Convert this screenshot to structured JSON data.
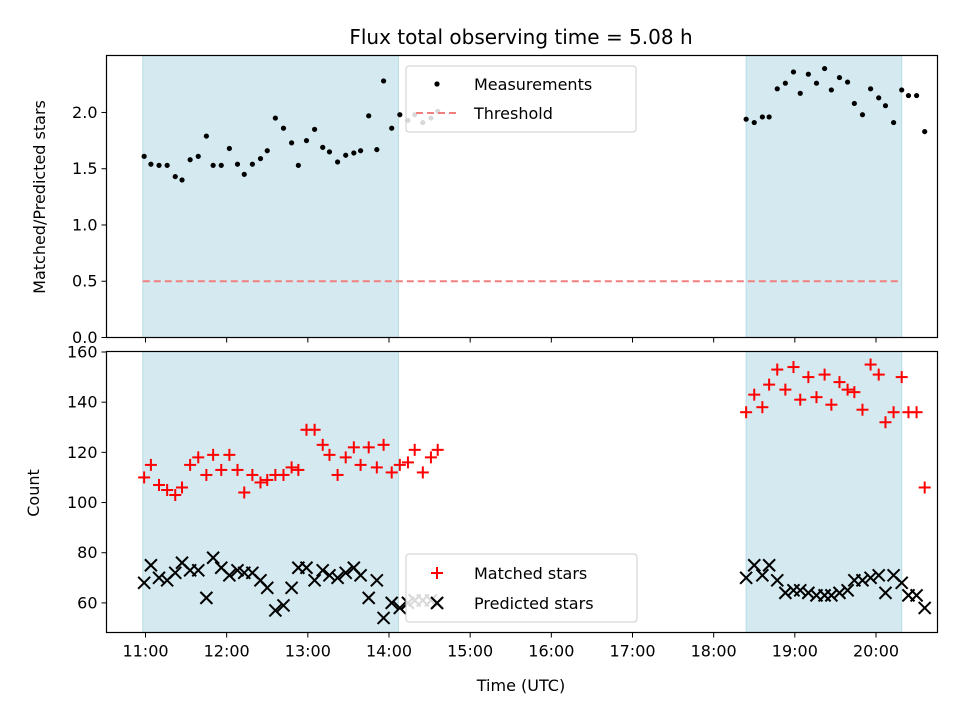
{
  "chart_data": [
    {
      "type": "scatter",
      "title": "Flux total observing time = 5.08 h",
      "ylabel": "Matched/Predicted stars",
      "xlabel": "",
      "ylim": [
        0,
        2.5
      ],
      "yticks": [
        "0.0",
        "0.5",
        "1.0",
        "1.5",
        "2.0"
      ],
      "xlim": [
        "10:32",
        "20:45"
      ],
      "shaded_intervals": [
        [
          "10:58",
          "14:07"
        ],
        [
          "18:24",
          "20:19"
        ]
      ],
      "threshold": 0.5,
      "legend_position": "top-center",
      "series": [
        {
          "name": "Measurements",
          "color": "#000000",
          "marker": "dot",
          "points": [
            [
              "10:59",
              1.61
            ],
            [
              "11:04",
              1.54
            ],
            [
              "11:10",
              1.53
            ],
            [
              "11:16",
              1.53
            ],
            [
              "11:22",
              1.43
            ],
            [
              "11:27",
              1.4
            ],
            [
              "11:33",
              1.58
            ],
            [
              "11:39",
              1.61
            ],
            [
              "11:45",
              1.79
            ],
            [
              "11:50",
              1.53
            ],
            [
              "11:56",
              1.53
            ],
            [
              "12:02",
              1.68
            ],
            [
              "12:08",
              1.54
            ],
            [
              "12:13",
              1.45
            ],
            [
              "12:19",
              1.54
            ],
            [
              "12:25",
              1.59
            ],
            [
              "12:30",
              1.66
            ],
            [
              "12:36",
              1.95
            ],
            [
              "12:42",
              1.86
            ],
            [
              "12:48",
              1.73
            ],
            [
              "12:53",
              1.53
            ],
            [
              "12:59",
              1.75
            ],
            [
              "13:05",
              1.85
            ],
            [
              "13:11",
              1.69
            ],
            [
              "13:16",
              1.65
            ],
            [
              "13:22",
              1.56
            ],
            [
              "13:28",
              1.62
            ],
            [
              "13:34",
              1.64
            ],
            [
              "13:39",
              1.66
            ],
            [
              "13:45",
              1.97
            ],
            [
              "13:51",
              1.67
            ],
            [
              "13:56",
              2.28
            ],
            [
              "14:02",
              1.86
            ],
            [
              "14:08",
              1.98
            ],
            [
              "14:14",
              1.93
            ],
            [
              "14:19",
              1.98
            ],
            [
              "14:25",
              1.91
            ],
            [
              "14:31",
              1.95
            ],
            [
              "14:36",
              2.01
            ],
            [
              "18:24",
              1.94
            ],
            [
              "18:30",
              1.91
            ],
            [
              "18:36",
              1.96
            ],
            [
              "18:41",
              1.96
            ],
            [
              "18:47",
              2.21
            ],
            [
              "18:53",
              2.26
            ],
            [
              "18:59",
              2.36
            ],
            [
              "19:04",
              2.17
            ],
            [
              "19:10",
              2.34
            ],
            [
              "19:16",
              2.26
            ],
            [
              "19:22",
              2.39
            ],
            [
              "19:27",
              2.2
            ],
            [
              "19:33",
              2.31
            ],
            [
              "19:39",
              2.27
            ],
            [
              "19:44",
              2.08
            ],
            [
              "19:50",
              1.98
            ],
            [
              "19:56",
              2.21
            ],
            [
              "20:02",
              2.13
            ],
            [
              "20:07",
              2.06
            ],
            [
              "20:13",
              1.91
            ],
            [
              "20:19",
              2.2
            ],
            [
              "20:24",
              2.15
            ],
            [
              "20:30",
              2.15
            ],
            [
              "20:36",
              1.83
            ]
          ]
        },
        {
          "name": "Threshold",
          "color": "#f08080",
          "style": "dashed",
          "points": [
            [
              "10:58",
              0.5
            ],
            [
              "20:19",
              0.5
            ]
          ]
        }
      ]
    },
    {
      "type": "scatter",
      "xlabel": "Time (UTC)",
      "ylabel": "Count",
      "ylim": [
        48,
        160
      ],
      "yticks": [
        "60",
        "80",
        "100",
        "120",
        "140",
        "160"
      ],
      "xlim": [
        "10:32",
        "20:45"
      ],
      "xticks": [
        "11:00",
        "12:00",
        "13:00",
        "14:00",
        "15:00",
        "16:00",
        "17:00",
        "18:00",
        "19:00",
        "20:00"
      ],
      "shaded_intervals": [
        [
          "10:58",
          "14:07"
        ],
        [
          "18:24",
          "20:19"
        ]
      ],
      "legend_position": "bottom-center",
      "series": [
        {
          "name": "Matched stars",
          "color": "#ff0000",
          "marker": "plus",
          "points": [
            [
              "10:59",
              110
            ],
            [
              "11:04",
              115
            ],
            [
              "11:10",
              107
            ],
            [
              "11:16",
              105
            ],
            [
              "11:22",
              103
            ],
            [
              "11:27",
              106
            ],
            [
              "11:33",
              115
            ],
            [
              "11:39",
              118
            ],
            [
              "11:45",
              111
            ],
            [
              "11:50",
              119
            ],
            [
              "11:56",
              113
            ],
            [
              "12:02",
              119
            ],
            [
              "12:08",
              113
            ],
            [
              "12:13",
              104
            ],
            [
              "12:19",
              111
            ],
            [
              "12:25",
              108
            ],
            [
              "12:30",
              109
            ],
            [
              "12:36",
              111
            ],
            [
              "12:42",
              111
            ],
            [
              "12:48",
              114
            ],
            [
              "12:53",
              113
            ],
            [
              "12:59",
              129
            ],
            [
              "13:05",
              129
            ],
            [
              "13:11",
              123
            ],
            [
              "13:16",
              119
            ],
            [
              "13:22",
              111
            ],
            [
              "13:28",
              118
            ],
            [
              "13:34",
              122
            ],
            [
              "13:39",
              115
            ],
            [
              "13:45",
              122
            ],
            [
              "13:51",
              114
            ],
            [
              "13:56",
              123
            ],
            [
              "14:02",
              112
            ],
            [
              "14:08",
              115
            ],
            [
              "14:14",
              116
            ],
            [
              "14:19",
              121
            ],
            [
              "14:25",
              112
            ],
            [
              "14:31",
              118
            ],
            [
              "14:36",
              121
            ],
            [
              "18:24",
              136
            ],
            [
              "18:30",
              143
            ],
            [
              "18:36",
              138
            ],
            [
              "18:41",
              147
            ],
            [
              "18:47",
              153
            ],
            [
              "18:53",
              145
            ],
            [
              "18:59",
              154
            ],
            [
              "19:04",
              141
            ],
            [
              "19:10",
              150
            ],
            [
              "19:16",
              142
            ],
            [
              "19:22",
              151
            ],
            [
              "19:27",
              139
            ],
            [
              "19:33",
              148
            ],
            [
              "19:39",
              145
            ],
            [
              "19:44",
              144
            ],
            [
              "19:50",
              137
            ],
            [
              "19:56",
              155
            ],
            [
              "20:02",
              151
            ],
            [
              "20:07",
              132
            ],
            [
              "20:13",
              136
            ],
            [
              "20:19",
              150
            ],
            [
              "20:24",
              136
            ],
            [
              "20:30",
              136
            ],
            [
              "20:36",
              106
            ]
          ]
        },
        {
          "name": "Predicted stars",
          "color": "#000000",
          "marker": "x",
          "points": [
            [
              "10:59",
              68
            ],
            [
              "11:04",
              75
            ],
            [
              "11:10",
              70
            ],
            [
              "11:16",
              69
            ],
            [
              "11:22",
              72
            ],
            [
              "11:27",
              76
            ],
            [
              "11:33",
              73
            ],
            [
              "11:39",
              73
            ],
            [
              "11:45",
              62
            ],
            [
              "11:50",
              78
            ],
            [
              "11:56",
              74
            ],
            [
              "12:02",
              71
            ],
            [
              "12:08",
              73
            ],
            [
              "12:13",
              72
            ],
            [
              "12:19",
              72
            ],
            [
              "12:25",
              69
            ],
            [
              "12:30",
              66
            ],
            [
              "12:36",
              57
            ],
            [
              "12:42",
              59
            ],
            [
              "12:48",
              66
            ],
            [
              "12:53",
              74
            ],
            [
              "12:59",
              74
            ],
            [
              "13:05",
              69
            ],
            [
              "13:11",
              73
            ],
            [
              "13:16",
              71
            ],
            [
              "13:22",
              70
            ],
            [
              "13:28",
              72
            ],
            [
              "13:34",
              74
            ],
            [
              "13:39",
              71
            ],
            [
              "13:45",
              62
            ],
            [
              "13:51",
              69
            ],
            [
              "13:56",
              54
            ],
            [
              "14:02",
              60
            ],
            [
              "14:08",
              58
            ],
            [
              "14:14",
              60
            ],
            [
              "14:19",
              61
            ],
            [
              "14:25",
              61
            ],
            [
              "14:31",
              61
            ],
            [
              "14:36",
              60
            ],
            [
              "18:24",
              70
            ],
            [
              "18:30",
              75
            ],
            [
              "18:36",
              71
            ],
            [
              "18:41",
              75
            ],
            [
              "18:47",
              69
            ],
            [
              "18:53",
              64
            ],
            [
              "18:59",
              65
            ],
            [
              "19:04",
              65
            ],
            [
              "19:10",
              64
            ],
            [
              "19:16",
              63
            ],
            [
              "19:22",
              63
            ],
            [
              "19:27",
              63
            ],
            [
              "19:33",
              64
            ],
            [
              "19:39",
              65
            ],
            [
              "19:44",
              69
            ],
            [
              "19:50",
              69
            ],
            [
              "19:56",
              70
            ],
            [
              "20:02",
              71
            ],
            [
              "20:07",
              64
            ],
            [
              "20:13",
              71
            ],
            [
              "20:19",
              68
            ],
            [
              "20:24",
              63
            ],
            [
              "20:30",
              63
            ],
            [
              "20:36",
              58
            ]
          ]
        }
      ]
    }
  ],
  "colors": {
    "shade": "#d4eaf0",
    "shade_edge": "#b8dce6",
    "axis": "#000000"
  }
}
